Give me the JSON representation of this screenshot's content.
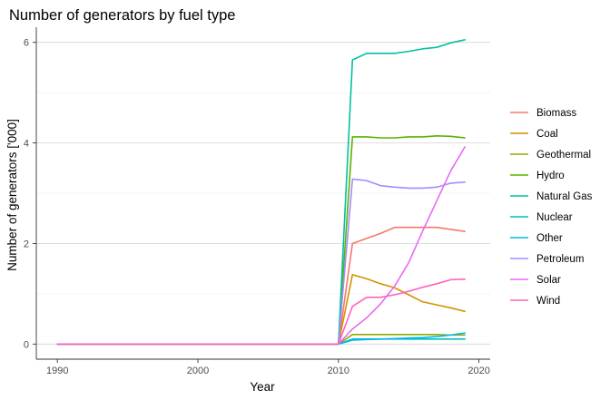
{
  "chart_data": {
    "type": "line",
    "title": "Number of generators by fuel type",
    "xlabel": "Year",
    "ylabel": "Number of generators ['000]",
    "xlim": [
      1988.5,
      2020.8
    ],
    "ylim": [
      -0.3,
      6.3
    ],
    "xticks": [
      1990,
      2000,
      2010,
      2020
    ],
    "yticks": [
      0,
      2,
      4,
      6
    ],
    "grid": true,
    "legend_position": "right",
    "x": [
      1990,
      1991,
      1992,
      1993,
      1994,
      1995,
      1996,
      1997,
      1998,
      1999,
      2000,
      2001,
      2002,
      2003,
      2004,
      2005,
      2006,
      2007,
      2008,
      2009,
      2010,
      2011,
      2012,
      2013,
      2014,
      2015,
      2016,
      2017,
      2018,
      2019
    ],
    "series": [
      {
        "name": "Biomass",
        "color": "#F8766D",
        "values": [
          0,
          0,
          0,
          0,
          0,
          0,
          0,
          0,
          0,
          0,
          0,
          0,
          0,
          0,
          0,
          0,
          0,
          0,
          0,
          0,
          0,
          2.0,
          2.1,
          2.2,
          2.32,
          2.32,
          2.32,
          2.32,
          2.28,
          2.24
        ]
      },
      {
        "name": "Coal",
        "color": "#D39200",
        "values": [
          0,
          0,
          0,
          0,
          0,
          0,
          0,
          0,
          0,
          0,
          0,
          0,
          0,
          0,
          0,
          0,
          0,
          0,
          0,
          0,
          0,
          1.38,
          1.3,
          1.2,
          1.12,
          0.98,
          0.84,
          0.78,
          0.72,
          0.65
        ]
      },
      {
        "name": "Geothermal",
        "color": "#93AA00",
        "values": [
          0,
          0,
          0,
          0,
          0,
          0,
          0,
          0,
          0,
          0,
          0,
          0,
          0,
          0,
          0,
          0,
          0,
          0,
          0,
          0,
          0,
          0.19,
          0.19,
          0.19,
          0.19,
          0.19,
          0.19,
          0.19,
          0.18,
          0.18
        ]
      },
      {
        "name": "Hydro",
        "color": "#5BB300",
        "values": [
          0,
          0,
          0,
          0,
          0,
          0,
          0,
          0,
          0,
          0,
          0,
          0,
          0,
          0,
          0,
          0,
          0,
          0,
          0,
          0,
          0,
          4.12,
          4.12,
          4.1,
          4.1,
          4.12,
          4.12,
          4.14,
          4.13,
          4.1
        ]
      },
      {
        "name": "Natural Gas",
        "color": "#00C19F",
        "values": [
          0,
          0,
          0,
          0,
          0,
          0,
          0,
          0,
          0,
          0,
          0,
          0,
          0,
          0,
          0,
          0,
          0,
          0,
          0,
          0,
          0,
          5.65,
          5.78,
          5.78,
          5.78,
          5.82,
          5.87,
          5.9,
          5.99,
          6.05
        ]
      },
      {
        "name": "Nuclear",
        "color": "#00BFC4",
        "values": [
          0,
          0,
          0,
          0,
          0,
          0,
          0,
          0,
          0,
          0,
          0,
          0,
          0,
          0,
          0,
          0,
          0,
          0,
          0,
          0,
          0,
          0.1,
          0.1,
          0.1,
          0.1,
          0.1,
          0.1,
          0.1,
          0.1,
          0.1
        ]
      },
      {
        "name": "Other",
        "color": "#00B9E3",
        "values": [
          0,
          0,
          0,
          0,
          0,
          0,
          0,
          0,
          0,
          0,
          0,
          0,
          0,
          0,
          0,
          0,
          0,
          0,
          0,
          0,
          0,
          0.08,
          0.09,
          0.1,
          0.11,
          0.12,
          0.13,
          0.15,
          0.18,
          0.22
        ]
      },
      {
        "name": "Petroleum",
        "color": "#A58AFF",
        "values": [
          0,
          0,
          0,
          0,
          0,
          0,
          0,
          0,
          0,
          0,
          0,
          0,
          0,
          0,
          0,
          0,
          0,
          0,
          0,
          0,
          0,
          3.28,
          3.25,
          3.15,
          3.12,
          3.1,
          3.1,
          3.12,
          3.2,
          3.22
        ]
      },
      {
        "name": "Solar",
        "color": "#E76BF3",
        "values": [
          0,
          0,
          0,
          0,
          0,
          0,
          0,
          0,
          0,
          0,
          0,
          0,
          0,
          0,
          0,
          0,
          0,
          0,
          0,
          0,
          0,
          0.3,
          0.52,
          0.8,
          1.15,
          1.62,
          2.25,
          2.85,
          3.45,
          3.92
        ]
      },
      {
        "name": "Wind",
        "color": "#FF62BC",
        "values": [
          0,
          0,
          0,
          0,
          0,
          0,
          0,
          0,
          0,
          0,
          0,
          0,
          0,
          0,
          0,
          0,
          0,
          0,
          0,
          0,
          0,
          0.75,
          0.93,
          0.93,
          0.98,
          1.05,
          1.13,
          1.2,
          1.28,
          1.29
        ]
      }
    ]
  }
}
